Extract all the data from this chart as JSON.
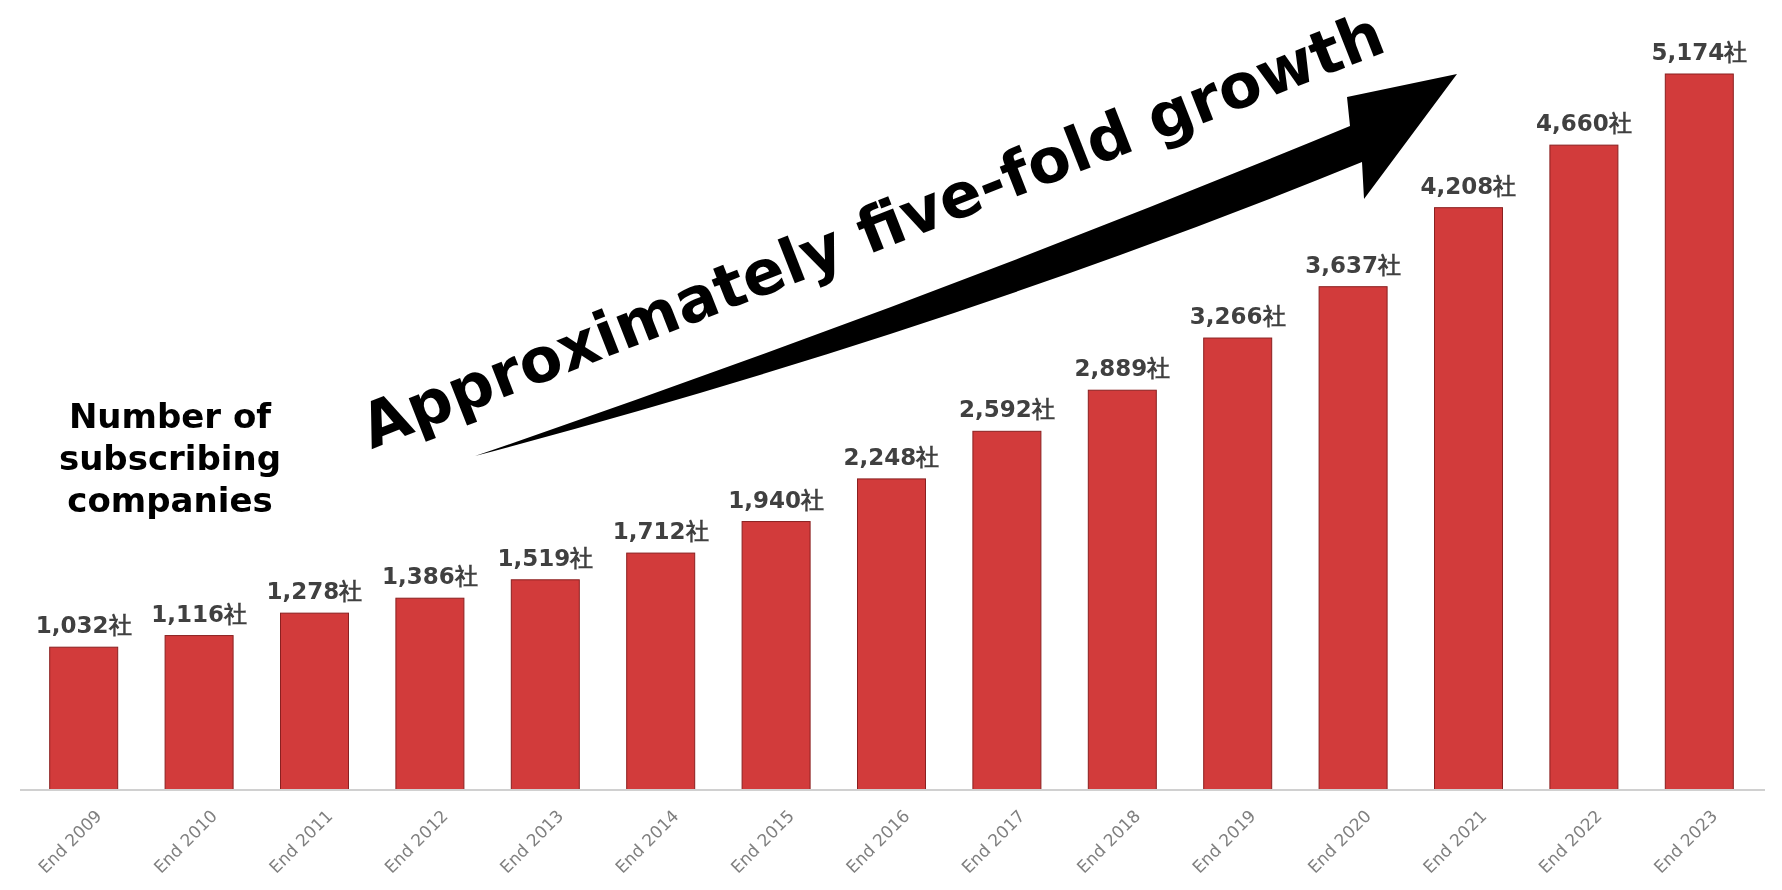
{
  "chart_data": {
    "type": "bar",
    "categories": [
      "End 2009",
      "End 2010",
      "End 2011",
      "End 2012",
      "End 2013",
      "End 2014",
      "End 2015",
      "End 2016",
      "End 2017",
      "End 2018",
      "End 2019",
      "End 2020",
      "End 2021",
      "End 2022",
      "End 2023"
    ],
    "values": [
      1032,
      1116,
      1278,
      1386,
      1519,
      1712,
      1940,
      2248,
      2592,
      2889,
      3266,
      3637,
      4208,
      4660,
      5174
    ],
    "value_labels": [
      "1,032社",
      "1,116社",
      "1,278社",
      "1,386社",
      "1,519社",
      "1,712社",
      "1,940社",
      "2,248社",
      "2,592社",
      "2,889社",
      "3,266社",
      "3,637社",
      "4,208社",
      "4,660社",
      "5,174社"
    ],
    "color": "#d23b3b",
    "annotations": [
      "Approximately five-fold growth",
      "Number of subscribing companies"
    ]
  }
}
